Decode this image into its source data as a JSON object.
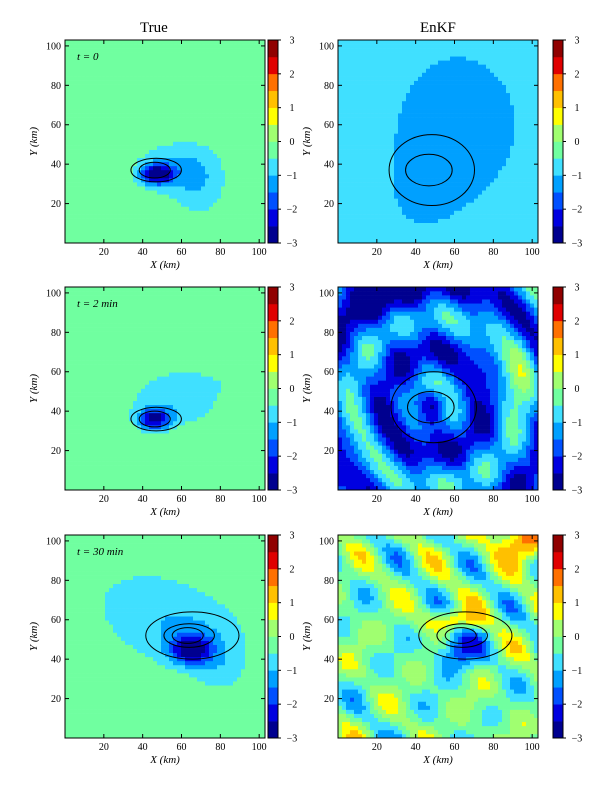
{
  "figure": {
    "column_titles": [
      "True",
      "EnKF"
    ]
  },
  "chart_data": {
    "type": "heatmap",
    "layout": "grid",
    "rows": 3,
    "cols": 2,
    "xlabel": "X (km)",
    "ylabel": "Y (km)",
    "xlim": [
      0,
      103
    ],
    "ylim": [
      0,
      103
    ],
    "xticks": [
      20,
      40,
      60,
      80,
      100
    ],
    "yticks": [
      20,
      40,
      60,
      80,
      100
    ],
    "colorbar": {
      "range": [
        -3,
        3
      ],
      "ticks": [
        3,
        2,
        1,
        0,
        -1,
        -2,
        -3
      ],
      "colors": [
        "#00008f",
        "#0000e0",
        "#0050ff",
        "#00a0ff",
        "#40e0ff",
        "#70ffa0",
        "#a0ff70",
        "#ffff00",
        "#ffc000",
        "#ff7000",
        "#e00000",
        "#900000"
      ]
    },
    "panels": [
      {
        "column": "True",
        "time_label": "t = 0"
      },
      {
        "column": "EnKF",
        "time_label": ""
      },
      {
        "column": "True",
        "time_label": "t = 2 min"
      },
      {
        "column": "EnKF",
        "time_label": ""
      },
      {
        "column": "True",
        "time_label": "t = 30 min"
      },
      {
        "column": "EnKF",
        "time_label": ""
      }
    ]
  }
}
